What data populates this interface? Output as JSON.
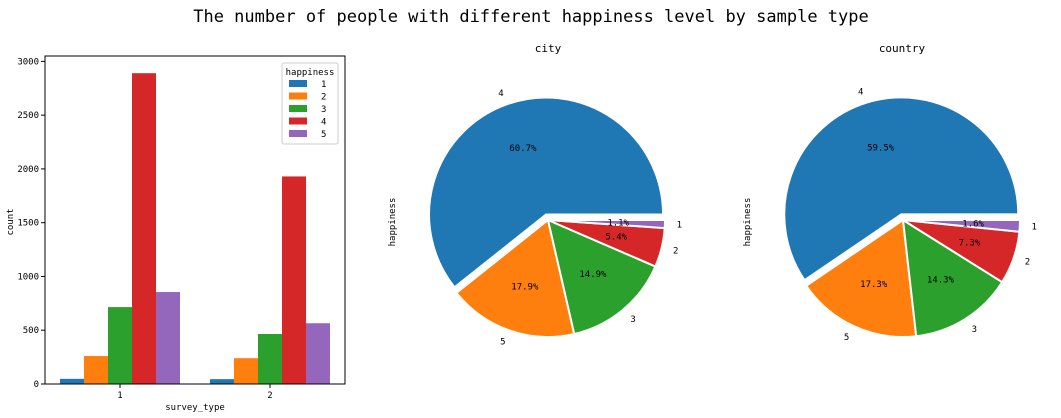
{
  "figure": {
    "title": "The number of people with different happiness level by sample type"
  },
  "chart_data": [
    {
      "type": "bar",
      "title": "",
      "xlabel": "survey_type",
      "ylabel": "count",
      "categories": [
        "1",
        "2"
      ],
      "ylim": [
        0,
        3050
      ],
      "yticks": [
        "0",
        "500",
        "1000",
        "1500",
        "2000",
        "2500",
        "3000"
      ],
      "legend": {
        "title": "happiness",
        "placement": "top-right"
      },
      "series": [
        {
          "name": "1",
          "color": "#1f77b4",
          "values": [
            48,
            45
          ]
        },
        {
          "name": "2",
          "color": "#ff7f0e",
          "values": [
            260,
            240
          ]
        },
        {
          "name": "3",
          "color": "#2ca02c",
          "values": [
            715,
            465
          ]
        },
        {
          "name": "4",
          "color": "#d62728",
          "values": [
            2890,
            1930
          ]
        },
        {
          "name": "5",
          "color": "#9467bd",
          "values": [
            855,
            565
          ]
        }
      ]
    },
    {
      "type": "pie",
      "title": "city",
      "ylabel": "happiness",
      "slices": [
        {
          "label": "4",
          "pct": 60.7,
          "pct_label": "60.7%",
          "color": "#1f77b4",
          "explode": true
        },
        {
          "label": "5",
          "pct": 17.9,
          "pct_label": "17.9%",
          "color": "#ff7f0e",
          "explode": false
        },
        {
          "label": "3",
          "pct": 14.9,
          "pct_label": "14.9%",
          "color": "#2ca02c",
          "explode": false
        },
        {
          "label": "2",
          "pct": 5.4,
          "pct_label": "5.4%",
          "color": "#d62728",
          "explode": false
        },
        {
          "label": "1",
          "pct": 1.1,
          "pct_label": "1.1%",
          "color": "#9467bd",
          "explode": false
        }
      ]
    },
    {
      "type": "pie",
      "title": "country",
      "ylabel": "happiness",
      "slices": [
        {
          "label": "4",
          "pct": 59.5,
          "pct_label": "59.5%",
          "color": "#1f77b4",
          "explode": true
        },
        {
          "label": "5",
          "pct": 17.3,
          "pct_label": "17.3%",
          "color": "#ff7f0e",
          "explode": false
        },
        {
          "label": "3",
          "pct": 14.3,
          "pct_label": "14.3%",
          "color": "#2ca02c",
          "explode": false
        },
        {
          "label": "2",
          "pct": 7.3,
          "pct_label": "7.3%",
          "color": "#d62728",
          "explode": false
        },
        {
          "label": "1",
          "pct": 1.6,
          "pct_label": "1.6%",
          "color": "#9467bd",
          "explode": false
        }
      ]
    }
  ]
}
